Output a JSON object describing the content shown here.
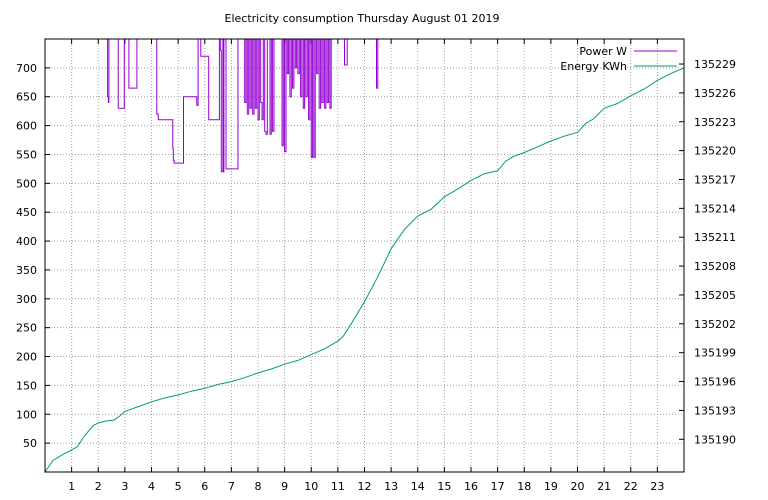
{
  "chart_data": {
    "type": "line",
    "title": "Electricity consumption Thursday August 01 2019",
    "xlabel": "",
    "ylabel": "",
    "y2label": "",
    "xlim": [
      0,
      24
    ],
    "ylim": [
      0,
      750
    ],
    "y2lim": [
      135186.6,
      135231.6
    ],
    "x_ticks": [
      1,
      2,
      3,
      4,
      5,
      6,
      7,
      8,
      9,
      10,
      11,
      12,
      13,
      14,
      15,
      16,
      17,
      18,
      19,
      20,
      21,
      22,
      23
    ],
    "y_ticks": [
      50,
      100,
      150,
      200,
      250,
      300,
      350,
      400,
      450,
      500,
      550,
      600,
      650,
      700
    ],
    "y2_ticks": [
      135190,
      135193,
      135196,
      135199,
      135202,
      135205,
      135208,
      135211,
      135214,
      135217,
      135220,
      135223,
      135226,
      135229
    ],
    "grid": true,
    "legend_position": "top-right",
    "series": [
      {
        "name": "Power W",
        "axis": "left",
        "color": "#9400d3",
        "x": [
          2.3,
          2.35,
          2.38,
          2.4,
          2.45,
          2.75,
          2.8,
          2.98,
          3.0,
          3.15,
          3.2,
          3.45,
          3.5,
          4.2,
          4.25,
          4.3,
          4.8,
          4.82,
          4.85,
          4.9,
          5.2,
          5.25,
          5.7,
          5.75,
          5.85,
          5.9,
          6.15,
          6.2,
          6.55,
          6.6,
          6.62,
          6.65,
          6.68,
          6.7,
          6.72,
          6.8,
          7.2,
          7.25,
          7.3,
          7.35,
          7.45,
          7.5,
          7.55,
          7.6,
          7.65,
          7.7,
          7.75,
          7.8,
          7.85,
          7.9,
          7.95,
          8.0,
          8.05,
          8.1,
          8.15,
          8.2,
          8.25,
          8.3,
          8.35,
          8.45,
          8.5,
          8.55,
          8.6,
          8.9,
          8.95,
          9.0,
          9.05,
          9.1,
          9.15,
          9.2,
          9.25,
          9.3,
          9.35,
          9.4,
          9.45,
          9.5,
          9.55,
          9.6,
          9.65,
          9.7,
          9.75,
          9.8,
          9.85,
          9.9,
          9.95,
          10.0,
          10.05,
          10.1,
          10.15,
          10.2,
          10.25,
          10.3,
          10.35,
          10.4,
          10.45,
          10.5,
          10.55,
          10.6,
          10.65,
          10.7,
          10.75,
          11.2,
          11.25,
          11.3,
          11.35,
          12.4,
          12.45,
          12.5
        ],
        "values": [
          760,
          650,
          640,
          760,
          760,
          630,
          630,
          760,
          760,
          665,
          665,
          760,
          760,
          620,
          610,
          610,
          560,
          540,
          535,
          535,
          650,
          650,
          635,
          760,
          720,
          720,
          610,
          610,
          760,
          730,
          520,
          520,
          760,
          520,
          760,
          525,
          525,
          760,
          760,
          760,
          760,
          640,
          760,
          620,
          760,
          630,
          760,
          620,
          760,
          630,
          760,
          610,
          760,
          640,
          610,
          760,
          590,
          585,
          760,
          585,
          760,
          590,
          760,
          565,
          760,
          555,
          760,
          690,
          760,
          650,
          760,
          665,
          760,
          700,
          760,
          690,
          760,
          650,
          760,
          630,
          760,
          650,
          760,
          610,
          760,
          545,
          760,
          545,
          760,
          690,
          760,
          630,
          760,
          640,
          760,
          630,
          760,
          640,
          760,
          630,
          760,
          760,
          705,
          705,
          760,
          760,
          665,
          760
        ]
      },
      {
        "name": "Energy KWh",
        "axis": "right",
        "color": "#009e73",
        "x": [
          0,
          0.3,
          0.6,
          1.0,
          1.2,
          1.5,
          1.8,
          2.0,
          2.3,
          2.6,
          2.8,
          3.0,
          3.5,
          4.0,
          4.5,
          5.0,
          5.5,
          6.0,
          6.5,
          7.0,
          7.5,
          8.0,
          8.5,
          9.0,
          9.5,
          10.0,
          10.5,
          11.0,
          11.2,
          11.5,
          12.0,
          12.5,
          13.0,
          13.5,
          14.0,
          14.5,
          15.0,
          15.5,
          16.0,
          16.5,
          17.0,
          17.3,
          17.6,
          18.0,
          18.5,
          19.0,
          19.5,
          20.0,
          20.3,
          20.6,
          21.0,
          21.5,
          22.0,
          22.5,
          23.0,
          23.5,
          24.0
        ],
        "values": [
          135186.6,
          135187.8,
          135188.3,
          135188.9,
          135189.2,
          135190.4,
          135191.4,
          135191.7,
          135191.9,
          135192.0,
          135192.4,
          135192.9,
          135193.4,
          135193.9,
          135194.3,
          135194.6,
          135195.0,
          135195.3,
          135195.7,
          135196.0,
          135196.4,
          135196.9,
          135197.3,
          135197.8,
          135198.2,
          135198.8,
          135199.4,
          135200.2,
          135200.7,
          135202.0,
          135204.3,
          135206.9,
          135209.8,
          135211.8,
          135213.2,
          135213.9,
          135215.2,
          135216.0,
          135216.9,
          135217.6,
          135217.9,
          135218.9,
          135219.4,
          135219.8,
          135220.4,
          135221.0,
          135221.5,
          135221.9,
          135222.8,
          135223.3,
          135224.4,
          135224.9,
          135225.7,
          135226.4,
          135227.3,
          135228.0,
          135228.6
        ]
      }
    ]
  }
}
